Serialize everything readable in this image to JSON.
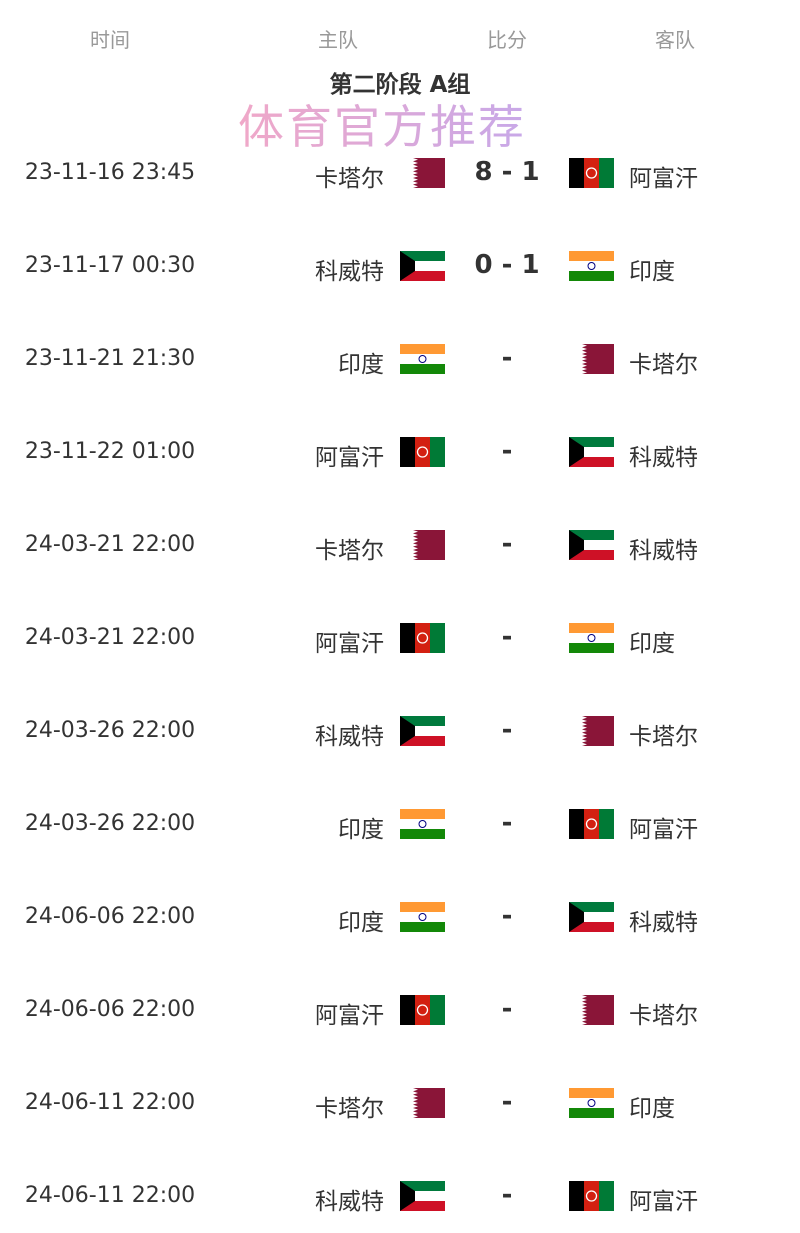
{
  "header": {
    "time": "时间",
    "home": "主队",
    "score": "比分",
    "away": "客队"
  },
  "title": "第二阶段 A组",
  "flag_colors": {
    "qatar": "#8a1538",
    "afghanistan": [
      "#000000",
      "#d32011",
      "#007a36"
    ],
    "kuwait": [
      "#007a3d",
      "#ffffff",
      "#ce1126",
      "#000000"
    ],
    "india": [
      "#ff9933",
      "#ffffff",
      "#138808",
      "#000080"
    ]
  },
  "matches": [
    {
      "time": "23-11-16 23:45",
      "home": "卡塔尔",
      "home_flag": "qatar",
      "score": "8 - 1",
      "away": "阿富汗",
      "away_flag": "afghanistan"
    },
    {
      "time": "23-11-17 00:30",
      "home": "科威特",
      "home_flag": "kuwait",
      "score": "0 - 1",
      "away": "印度",
      "away_flag": "india"
    },
    {
      "time": "23-11-21 21:30",
      "home": "印度",
      "home_flag": "india",
      "score": "-",
      "away": "卡塔尔",
      "away_flag": "qatar"
    },
    {
      "time": "23-11-22 01:00",
      "home": "阿富汗",
      "home_flag": "afghanistan",
      "score": "-",
      "away": "科威特",
      "away_flag": "kuwait"
    },
    {
      "time": "24-03-21 22:00",
      "home": "卡塔尔",
      "home_flag": "qatar",
      "score": "-",
      "away": "科威特",
      "away_flag": "kuwait"
    },
    {
      "time": "24-03-21 22:00",
      "home": "阿富汗",
      "home_flag": "afghanistan",
      "score": "-",
      "away": "印度",
      "away_flag": "india"
    },
    {
      "time": "24-03-26 22:00",
      "home": "科威特",
      "home_flag": "kuwait",
      "score": "-",
      "away": "卡塔尔",
      "away_flag": "qatar"
    },
    {
      "time": "24-03-26 22:00",
      "home": "印度",
      "home_flag": "india",
      "score": "-",
      "away": "阿富汗",
      "away_flag": "afghanistan"
    },
    {
      "time": "24-06-06 22:00",
      "home": "印度",
      "home_flag": "india",
      "score": "-",
      "away": "科威特",
      "away_flag": "kuwait"
    },
    {
      "time": "24-06-06 22:00",
      "home": "阿富汗",
      "home_flag": "afghanistan",
      "score": "-",
      "away": "卡塔尔",
      "away_flag": "qatar"
    },
    {
      "time": "24-06-11 22:00",
      "home": "卡塔尔",
      "home_flag": "qatar",
      "score": "-",
      "away": "印度",
      "away_flag": "india"
    },
    {
      "time": "24-06-11 22:00",
      "home": "科威特",
      "home_flag": "kuwait",
      "score": "-",
      "away": "阿富汗",
      "away_flag": "afghanistan"
    }
  ],
  "watermark": "体育官方推荐"
}
